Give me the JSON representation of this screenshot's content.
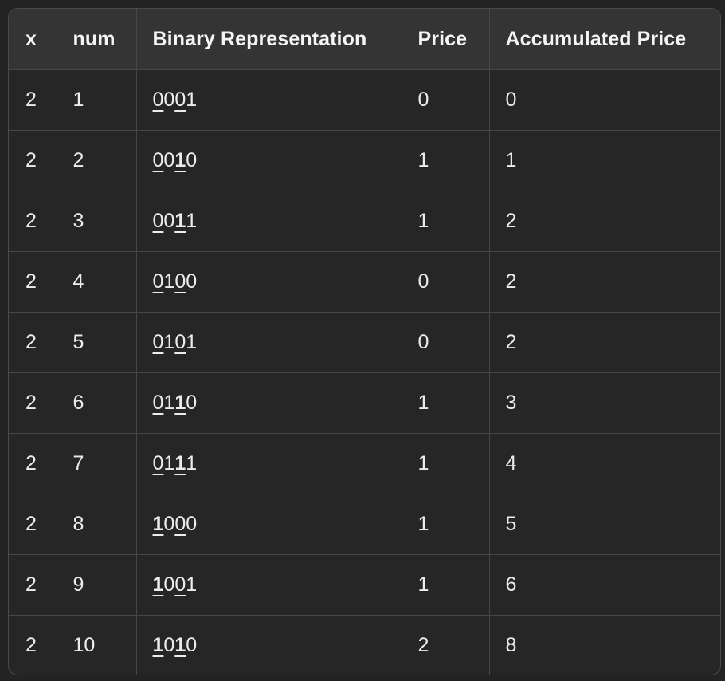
{
  "table": {
    "headers": [
      "x",
      "num",
      "Binary Representation",
      "Price",
      "Accumulated Price"
    ],
    "rows": [
      {
        "x": "2",
        "num": "1",
        "binary": [
          {
            "d": "0",
            "u": true,
            "b": false
          },
          {
            "d": "0",
            "u": false,
            "b": false
          },
          {
            "d": "0",
            "u": true,
            "b": false
          },
          {
            "d": "1",
            "u": false,
            "b": false
          }
        ],
        "price": "0",
        "accumulated": "0"
      },
      {
        "x": "2",
        "num": "2",
        "binary": [
          {
            "d": "0",
            "u": true,
            "b": false
          },
          {
            "d": "0",
            "u": false,
            "b": false
          },
          {
            "d": "1",
            "u": true,
            "b": true
          },
          {
            "d": "0",
            "u": false,
            "b": false
          }
        ],
        "price": "1",
        "accumulated": "1"
      },
      {
        "x": "2",
        "num": "3",
        "binary": [
          {
            "d": "0",
            "u": true,
            "b": false
          },
          {
            "d": "0",
            "u": false,
            "b": false
          },
          {
            "d": "1",
            "u": true,
            "b": true
          },
          {
            "d": "1",
            "u": false,
            "b": false
          }
        ],
        "price": "1",
        "accumulated": "2"
      },
      {
        "x": "2",
        "num": "4",
        "binary": [
          {
            "d": "0",
            "u": true,
            "b": false
          },
          {
            "d": "1",
            "u": false,
            "b": false
          },
          {
            "d": "0",
            "u": true,
            "b": false
          },
          {
            "d": "0",
            "u": false,
            "b": false
          }
        ],
        "price": "0",
        "accumulated": "2"
      },
      {
        "x": "2",
        "num": "5",
        "binary": [
          {
            "d": "0",
            "u": true,
            "b": false
          },
          {
            "d": "1",
            "u": false,
            "b": false
          },
          {
            "d": "0",
            "u": true,
            "b": false
          },
          {
            "d": "1",
            "u": false,
            "b": false
          }
        ],
        "price": "0",
        "accumulated": "2"
      },
      {
        "x": "2",
        "num": "6",
        "binary": [
          {
            "d": "0",
            "u": true,
            "b": false
          },
          {
            "d": "1",
            "u": false,
            "b": false
          },
          {
            "d": "1",
            "u": true,
            "b": true
          },
          {
            "d": "0",
            "u": false,
            "b": false
          }
        ],
        "price": "1",
        "accumulated": "3"
      },
      {
        "x": "2",
        "num": "7",
        "binary": [
          {
            "d": "0",
            "u": true,
            "b": false
          },
          {
            "d": "1",
            "u": false,
            "b": false
          },
          {
            "d": "1",
            "u": true,
            "b": true
          },
          {
            "d": "1",
            "u": false,
            "b": false
          }
        ],
        "price": "1",
        "accumulated": "4"
      },
      {
        "x": "2",
        "num": "8",
        "binary": [
          {
            "d": "1",
            "u": true,
            "b": true
          },
          {
            "d": "0",
            "u": false,
            "b": false
          },
          {
            "d": "0",
            "u": true,
            "b": false
          },
          {
            "d": "0",
            "u": false,
            "b": false
          }
        ],
        "price": "1",
        "accumulated": "5"
      },
      {
        "x": "2",
        "num": "9",
        "binary": [
          {
            "d": "1",
            "u": true,
            "b": true
          },
          {
            "d": "0",
            "u": false,
            "b": false
          },
          {
            "d": "0",
            "u": true,
            "b": false
          },
          {
            "d": "1",
            "u": false,
            "b": false
          }
        ],
        "price": "1",
        "accumulated": "6"
      },
      {
        "x": "2",
        "num": "10",
        "binary": [
          {
            "d": "1",
            "u": true,
            "b": true
          },
          {
            "d": "0",
            "u": false,
            "b": false
          },
          {
            "d": "1",
            "u": true,
            "b": true
          },
          {
            "d": "0",
            "u": false,
            "b": false
          }
        ],
        "price": "2",
        "accumulated": "8"
      }
    ]
  }
}
